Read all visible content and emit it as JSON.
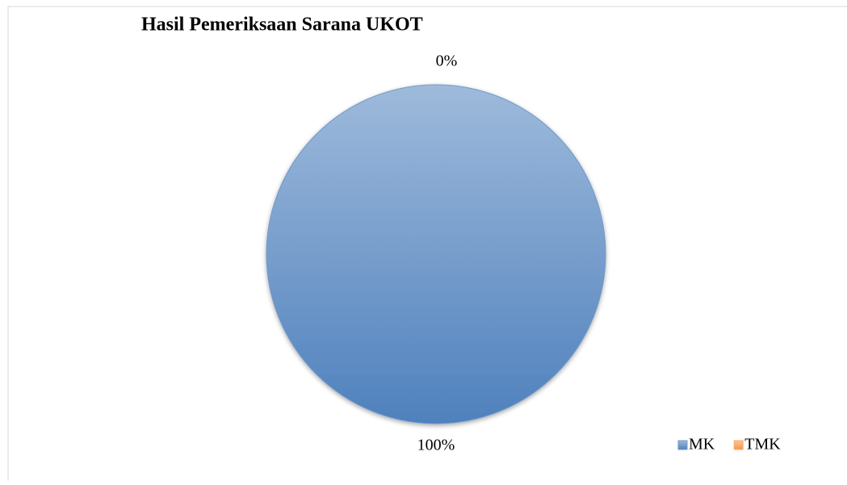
{
  "chart_data": {
    "type": "pie",
    "title": "Hasil Pemeriksaan Sarana UKOT",
    "categories": [
      "MK",
      "TMK"
    ],
    "values": [
      100,
      0
    ],
    "value_labels": [
      "100%",
      "0%"
    ],
    "colors": [
      "#4f81bd",
      "#f79646"
    ],
    "legend": "bottom-right"
  }
}
